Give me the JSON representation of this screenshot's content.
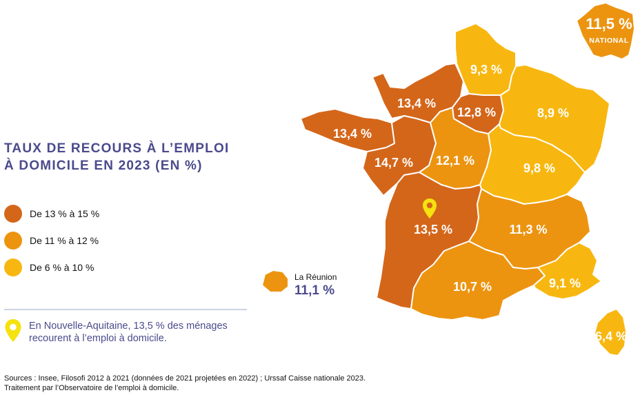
{
  "title": {
    "line1": "TAUX DE RECOURS À L’EMPLOI",
    "line2": "À DOMICILE EN 2023 (EN %)"
  },
  "colors": {
    "high": "#d4661a",
    "mid": "#ec9410",
    "low": "#f8b710",
    "text_purple": "#4a4a8c",
    "pin": "#f5e20e"
  },
  "legend": [
    {
      "label": "De 13 % à 15 %",
      "color": "#d4661a"
    },
    {
      "label": "De 11 % à 12 %",
      "color": "#ec9410"
    },
    {
      "label": "De 6 % à 10 %",
      "color": "#f8b710"
    }
  ],
  "callout": {
    "icon": "map-pin-icon",
    "line1": "En Nouvelle-Aquitaine, 13,5 % des ménages",
    "line2": "recourent à l’emploi à domicile."
  },
  "regions": {
    "hauts_de_france": "9,3 %",
    "normandie": "13,4 %",
    "ile_de_france": "12,8 %",
    "grand_est": "8,9 %",
    "bretagne": "13,4 %",
    "pays_de_la_loire": "14,7 %",
    "centre_val_de_loire": "12,1 %",
    "bourgogne_franche_comte": "9,8 %",
    "nouvelle_aquitaine": "13,5 %",
    "auvergne_rhone_alpes": "11,3 %",
    "occitanie": "10,7 %",
    "paca": "9,1 %",
    "corse": "6,4 %"
  },
  "reunion": {
    "name": "La Réunion",
    "value": "11,1 %"
  },
  "national": {
    "value": "11,5 %",
    "label": "NATIONAL"
  },
  "sources": {
    "line1": "Sources : Insee, Filosofi 2012 à 2021 (données de 2021 projetées en 2022) ; Urssaf Caisse nationale 2023.",
    "line2": "Traitement par l’Observatoire de l’emploi à domicile."
  }
}
